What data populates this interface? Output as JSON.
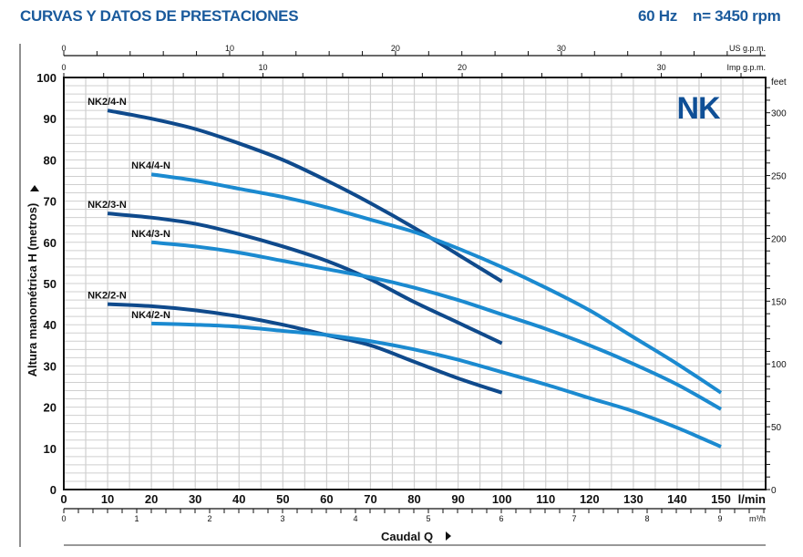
{
  "header": {
    "title": "CURVAS Y DATOS DE PRESTACIONES",
    "frequency": "60 Hz",
    "speed": "n= 3450 rpm"
  },
  "logo": "NK",
  "colors": {
    "dark_curve": "#0f4a8c",
    "light_curve": "#1b8ad0",
    "title": "#1a5a9c",
    "grid": "#cfcfcf",
    "logo": "#0f4f96"
  },
  "chart_data": {
    "type": "line",
    "title": "CURVAS Y DATOS DE PRESTACIONES",
    "xlabel": "Caudal Q",
    "ylabel": "Altura manométrica H (metros)",
    "x_unit": "l/min",
    "x_range": [
      0,
      160
    ],
    "x_ticks": [
      0,
      10,
      20,
      30,
      40,
      50,
      60,
      70,
      80,
      90,
      100,
      110,
      120,
      130,
      140,
      150
    ],
    "y_range": [
      0,
      100
    ],
    "y_ticks": [
      0,
      10,
      20,
      30,
      40,
      50,
      60,
      70,
      80,
      90,
      100
    ],
    "grid": true,
    "secondary_axes": {
      "m3h": {
        "unit": "m³/h",
        "ticks": [
          0,
          1,
          2,
          3,
          4,
          5,
          6,
          7,
          8,
          9
        ]
      },
      "us_gpm": {
        "unit": "US g.p.m.",
        "ticks": [
          0,
          10,
          20,
          30
        ]
      },
      "imp_gpm": {
        "unit": "Imp g.p.m.",
        "ticks": [
          0,
          10,
          20,
          30
        ]
      },
      "feet": {
        "unit": "feet",
        "ticks": [
          0,
          50,
          100,
          150,
          200,
          250,
          300
        ]
      }
    },
    "series": [
      {
        "name": "NK2/4-N",
        "color": "dark",
        "x": [
          10,
          20,
          30,
          40,
          50,
          60,
          70,
          80,
          90,
          100
        ],
        "y": [
          92,
          90,
          87.5,
          84,
          80,
          75,
          69.5,
          63.5,
          57,
          50.5
        ]
      },
      {
        "name": "NK4/4-N",
        "color": "light",
        "x": [
          20,
          30,
          40,
          50,
          60,
          70,
          80,
          90,
          100,
          110,
          120,
          130,
          140,
          150
        ],
        "y": [
          76.5,
          75,
          73,
          71,
          68.5,
          65.5,
          62.5,
          58.5,
          54,
          49,
          43.5,
          37,
          30.5,
          23.5
        ]
      },
      {
        "name": "NK2/3-N",
        "color": "dark",
        "x": [
          10,
          20,
          30,
          40,
          50,
          60,
          70,
          80,
          90,
          100
        ],
        "y": [
          67,
          66,
          64.5,
          62,
          59,
          55.5,
          51,
          45.5,
          40.5,
          35.5
        ]
      },
      {
        "name": "NK4/3-N",
        "color": "light",
        "x": [
          20,
          30,
          40,
          50,
          60,
          70,
          80,
          90,
          100,
          110,
          120,
          130,
          140,
          150
        ],
        "y": [
          60,
          59,
          57.5,
          55.5,
          53.5,
          51.5,
          49,
          46,
          42.5,
          39,
          35,
          30.5,
          25.5,
          19.5
        ]
      },
      {
        "name": "NK2/2-N",
        "color": "dark",
        "x": [
          10,
          20,
          30,
          40,
          50,
          60,
          70,
          80,
          90,
          100
        ],
        "y": [
          45,
          44.5,
          43.5,
          42,
          40,
          37.5,
          35,
          31,
          27,
          23.5
        ]
      },
      {
        "name": "NK4/2-N",
        "color": "light",
        "x": [
          20,
          30,
          40,
          50,
          60,
          70,
          80,
          90,
          100,
          110,
          120,
          130,
          140,
          150
        ],
        "y": [
          40.3,
          40,
          39.5,
          38.5,
          37.5,
          36,
          34,
          31.5,
          28.5,
          25.5,
          22.2,
          19,
          15,
          10.4
        ]
      }
    ]
  }
}
